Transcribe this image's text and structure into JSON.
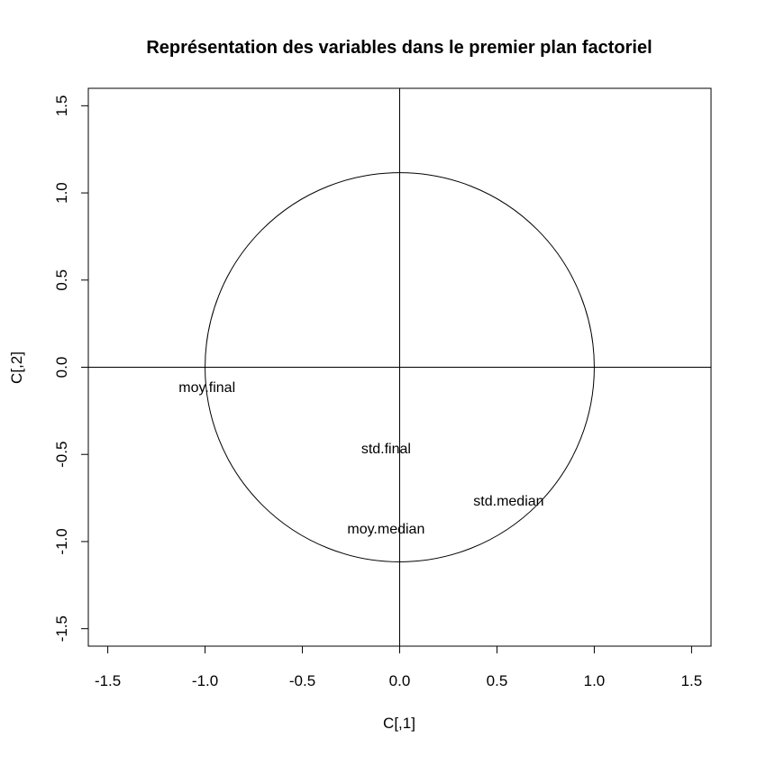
{
  "chart_data": {
    "type": "scatter",
    "title": "Représentation des variables dans le premier plan factoriel",
    "xlabel": "C[,1]",
    "ylabel": "C[,2]",
    "xlim": [
      -1.6,
      1.6
    ],
    "ylim": [
      -1.6,
      1.6
    ],
    "xticks": [
      "-1.5",
      "-1.0",
      "-0.5",
      "0.0",
      "0.5",
      "1.0",
      "1.5"
    ],
    "yticks": [
      "-1.5",
      "-1.0",
      "-0.5",
      "0.0",
      "0.5",
      "1.0",
      "1.5"
    ],
    "grid": false,
    "reference_lines": {
      "x": 0,
      "y": 0
    },
    "unit_circle": {
      "center": [
        0,
        0
      ],
      "radius": 1
    },
    "points": [
      {
        "label": "moy.final",
        "x": -0.99,
        "y": -0.12
      },
      {
        "label": "std.final",
        "x": -0.07,
        "y": -0.47
      },
      {
        "label": "std.median",
        "x": 0.56,
        "y": -0.77
      },
      {
        "label": "moy.median",
        "x": -0.07,
        "y": -0.93
      }
    ]
  }
}
